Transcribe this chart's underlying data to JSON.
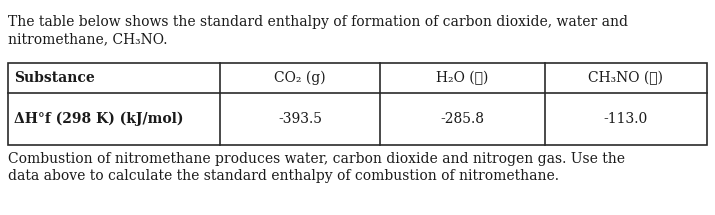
{
  "intro_line1": "The table below shows the standard enthalpy of formation of carbon dioxide, water and",
  "intro_line2": "nitromethane, CH₃NO.",
  "col_headers": [
    "Substance",
    "CO₂ (g)",
    "H₂O (ℓ)",
    "CH₃NO (ℓ)"
  ],
  "row_label": "ΔH°f (298 K) (kJ/mol)",
  "row_values": [
    "-393.5",
    "-285.8",
    "-113.0"
  ],
  "footer_line1": "Combustion of nitromethane produces water, carbon dioxide and nitrogen gas. Use the",
  "footer_line2": "data above to calculate the standard enthalpy of combustion of nitromethane.",
  "font_size": 10.0,
  "table_header_row_label": "Substance",
  "bg_color": "#ffffff",
  "border_color": "#2a2a2a",
  "text_color": "#1a1a1a"
}
